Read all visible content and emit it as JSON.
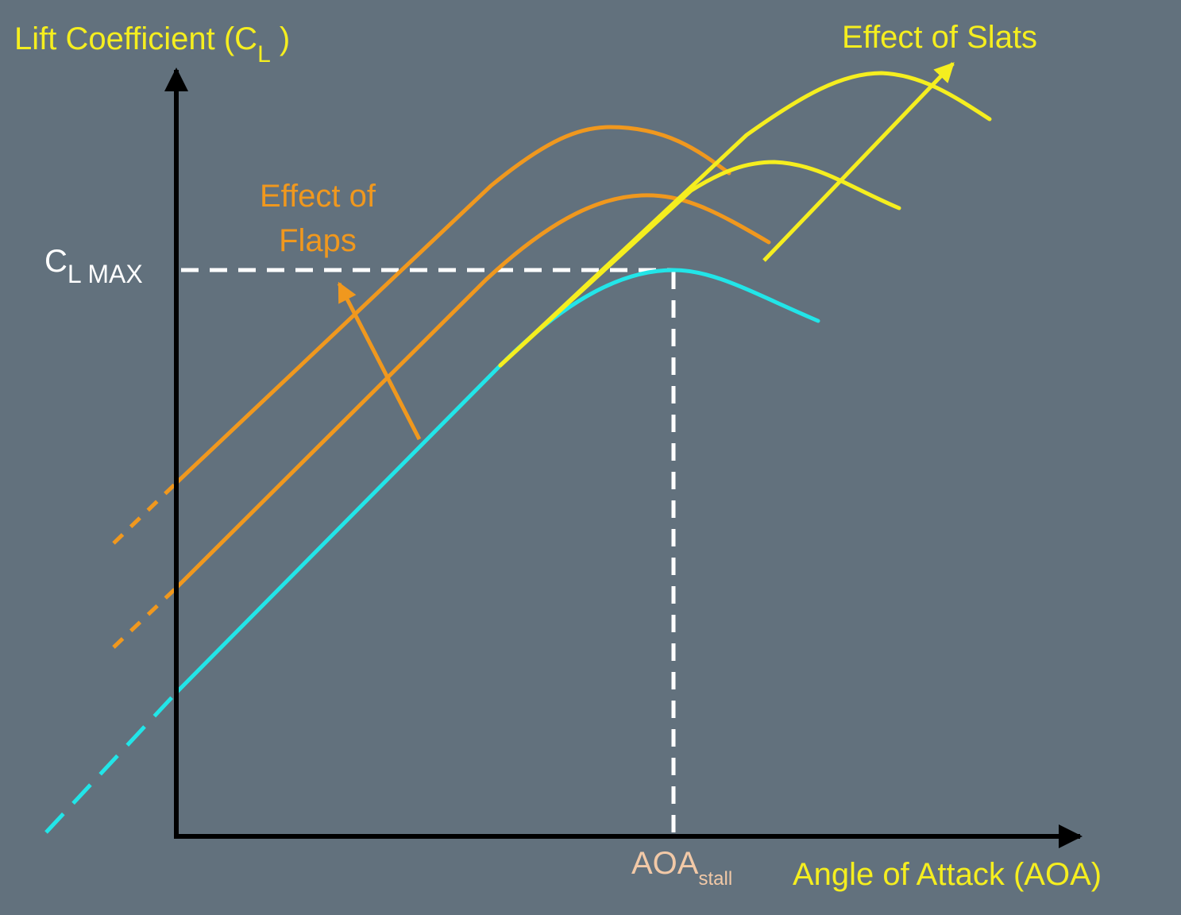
{
  "colors": {
    "background": "#62717d",
    "axis": "#000000",
    "base_curve": "#22e5e8",
    "flaps": "#f0981e",
    "slats": "#f5ee1f",
    "reference": "#ffffff",
    "stall_label": "#f2c9a7"
  },
  "y_axis": {
    "label_main": "Lift Coefficient (C",
    "label_sub": "L",
    "label_close": " )"
  },
  "x_axis": {
    "label": "Angle of Attack (AOA)"
  },
  "clmax": {
    "main": "C",
    "sub": "L MAX"
  },
  "aoa_stall": {
    "main": "AOA",
    "sub": "stall"
  },
  "annotations": {
    "flaps_line1": "Effect of",
    "flaps_line2": "Flaps",
    "slats": "Effect of Slats"
  }
}
